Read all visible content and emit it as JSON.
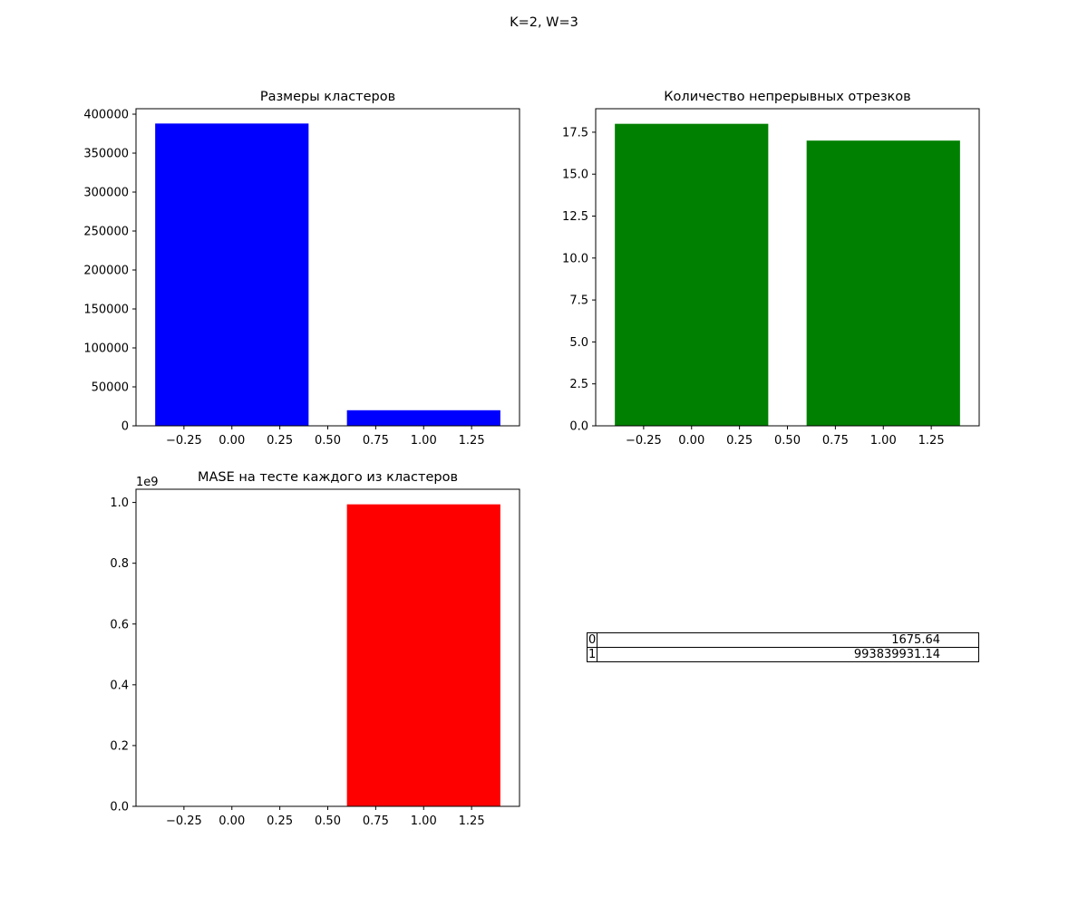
{
  "figure": {
    "suptitle": "K=2, W=3"
  },
  "chart_data": [
    {
      "type": "bar",
      "title": "Размеры кластеров",
      "xlabel": "",
      "ylabel": "",
      "x": [
        0,
        1
      ],
      "values": [
        388000,
        20000
      ],
      "bar_width": 0.8,
      "color": "#0000ff",
      "xlim": [
        -0.5,
        1.5
      ],
      "ylim": [
        0,
        407000
      ],
      "xticks": [
        -0.25,
        0.0,
        0.25,
        0.5,
        0.75,
        1.0,
        1.25
      ],
      "xtick_labels": [
        "−0.25",
        "0.00",
        "0.25",
        "0.50",
        "0.75",
        "1.00",
        "1.25"
      ],
      "yticks": [
        0,
        50000,
        100000,
        150000,
        200000,
        250000,
        300000,
        350000,
        400000
      ],
      "ytick_labels": [
        "0",
        "50000",
        "100000",
        "150000",
        "200000",
        "250000",
        "300000",
        "350000",
        "400000"
      ],
      "grid": false
    },
    {
      "type": "bar",
      "title": "Количество непрерывных отрезков",
      "xlabel": "",
      "ylabel": "",
      "x": [
        0,
        1
      ],
      "values": [
        18,
        17
      ],
      "bar_width": 0.8,
      "color": "#008000",
      "xlim": [
        -0.5,
        1.5
      ],
      "ylim": [
        0,
        18.9
      ],
      "xticks": [
        -0.25,
        0.0,
        0.25,
        0.5,
        0.75,
        1.0,
        1.25
      ],
      "xtick_labels": [
        "−0.25",
        "0.00",
        "0.25",
        "0.50",
        "0.75",
        "1.00",
        "1.25"
      ],
      "yticks": [
        0,
        2.5,
        5.0,
        7.5,
        10.0,
        12.5,
        15.0,
        17.5
      ],
      "ytick_labels": [
        "0.0",
        "2.5",
        "5.0",
        "7.5",
        "10.0",
        "12.5",
        "15.0",
        "17.5"
      ],
      "grid": false
    },
    {
      "type": "bar",
      "title": "MASE на тесте каждого из кластеров",
      "xlabel": "",
      "ylabel": "",
      "offset_label": "1e9",
      "x": [
        0,
        1
      ],
      "values": [
        1675.64,
        993839931.14
      ],
      "bar_width": 0.8,
      "color": "#ff0000",
      "xlim": [
        -0.5,
        1.5
      ],
      "ylim": [
        0,
        1043500000
      ],
      "xticks": [
        -0.25,
        0.0,
        0.25,
        0.5,
        0.75,
        1.0,
        1.25
      ],
      "xtick_labels": [
        "−0.25",
        "0.00",
        "0.25",
        "0.50",
        "0.75",
        "1.00",
        "1.25"
      ],
      "yticks": [
        0,
        200000000,
        400000000,
        600000000,
        800000000,
        1000000000
      ],
      "ytick_labels": [
        "0.0",
        "0.2",
        "0.4",
        "0.6",
        "0.8",
        "1.0"
      ],
      "grid": false
    },
    {
      "type": "table",
      "rows": [
        {
          "index": "0",
          "value": "1675.64"
        },
        {
          "index": "1",
          "value": "993839931.14"
        }
      ]
    }
  ]
}
